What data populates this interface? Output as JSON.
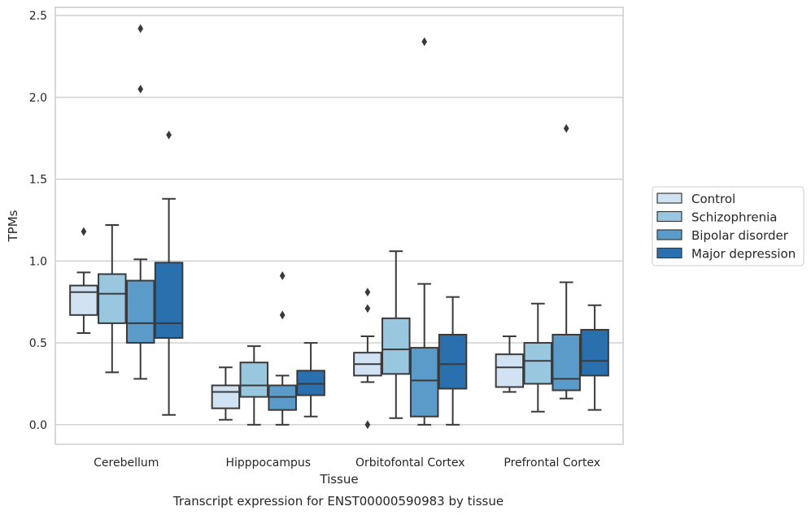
{
  "chart_data": {
    "type": "boxplot",
    "title": "",
    "caption": "Transcript expression for ENST00000590983 by tissue",
    "xlabel": "Tissue",
    "ylabel": "TPMs",
    "ylim": [
      -0.12,
      2.55
    ],
    "yticks": [
      0.0,
      0.5,
      1.0,
      1.5,
      2.0,
      2.5
    ],
    "ytick_labels": [
      "0.0",
      "0.5",
      "1.0",
      "1.5",
      "2.0",
      "2.5"
    ],
    "grid": true,
    "legend_position": "right",
    "categories": [
      "Cerebellum",
      "Hipppocampus",
      "Orbitofontal Cortex",
      "Prefrontal Cortex"
    ],
    "series": [
      {
        "name": "Control",
        "color": "#d1e2f2",
        "boxes": [
          {
            "whislo": 0.56,
            "q1": 0.67,
            "med": 0.81,
            "q3": 0.85,
            "whishi": 0.93,
            "fliers": [
              1.18
            ]
          },
          {
            "whislo": 0.03,
            "q1": 0.1,
            "med": 0.2,
            "q3": 0.24,
            "whishi": 0.35,
            "fliers": []
          },
          {
            "whislo": 0.26,
            "q1": 0.3,
            "med": 0.37,
            "q3": 0.44,
            "whishi": 0.54,
            "fliers": [
              0.81,
              0.71,
              0.0
            ]
          },
          {
            "whislo": 0.2,
            "q1": 0.23,
            "med": 0.35,
            "q3": 0.43,
            "whishi": 0.54,
            "fliers": []
          }
        ]
      },
      {
        "name": "Schizophrenia",
        "color": "#9ac7e0",
        "boxes": [
          {
            "whislo": 0.32,
            "q1": 0.62,
            "med": 0.8,
            "q3": 0.92,
            "whishi": 1.22,
            "fliers": []
          },
          {
            "whislo": 0.0,
            "q1": 0.17,
            "med": 0.24,
            "q3": 0.38,
            "whishi": 0.48,
            "fliers": []
          },
          {
            "whislo": 0.04,
            "q1": 0.31,
            "med": 0.46,
            "q3": 0.65,
            "whishi": 1.06,
            "fliers": []
          },
          {
            "whislo": 0.08,
            "q1": 0.25,
            "med": 0.39,
            "q3": 0.5,
            "whishi": 0.74,
            "fliers": []
          }
        ]
      },
      {
        "name": "Bipolar disorder",
        "color": "#5a9bc9",
        "boxes": [
          {
            "whislo": 0.28,
            "q1": 0.5,
            "med": 0.62,
            "q3": 0.88,
            "whishi": 1.01,
            "fliers": [
              2.42,
              2.05
            ]
          },
          {
            "whislo": 0.0,
            "q1": 0.09,
            "med": 0.17,
            "q3": 0.24,
            "whishi": 0.3,
            "fliers": [
              0.91,
              0.67
            ]
          },
          {
            "whislo": 0.0,
            "q1": 0.05,
            "med": 0.27,
            "q3": 0.47,
            "whishi": 0.86,
            "fliers": [
              2.34
            ]
          },
          {
            "whislo": 0.16,
            "q1": 0.21,
            "med": 0.28,
            "q3": 0.55,
            "whishi": 0.87,
            "fliers": [
              1.81
            ]
          }
        ]
      },
      {
        "name": "Major depression",
        "color": "#2a6fae",
        "boxes": [
          {
            "whislo": 0.06,
            "q1": 0.53,
            "med": 0.62,
            "q3": 0.99,
            "whishi": 1.38,
            "fliers": [
              1.77
            ]
          },
          {
            "whislo": 0.05,
            "q1": 0.18,
            "med": 0.25,
            "q3": 0.33,
            "whishi": 0.5,
            "fliers": []
          },
          {
            "whislo": 0.0,
            "q1": 0.22,
            "med": 0.37,
            "q3": 0.55,
            "whishi": 0.78,
            "fliers": []
          },
          {
            "whislo": 0.09,
            "q1": 0.3,
            "med": 0.39,
            "q3": 0.58,
            "whishi": 0.73,
            "fliers": []
          }
        ]
      }
    ]
  }
}
